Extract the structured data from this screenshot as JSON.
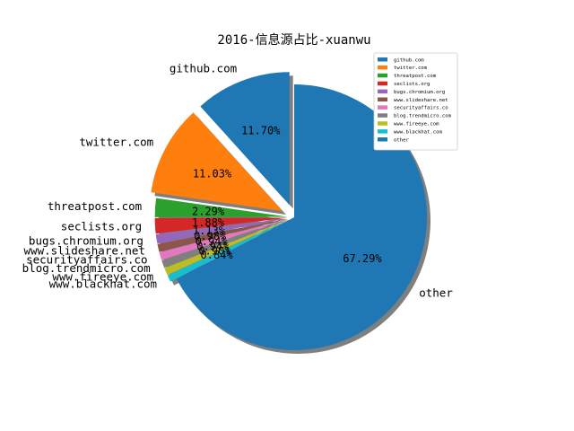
{
  "chart_data": {
    "type": "pie",
    "title": "2016-信息源占比-xuanwu",
    "start_angle_deg": 90,
    "direction": "counterclockwise",
    "shadow": true,
    "legend_placement": "top-right",
    "slices": [
      {
        "label": "github.com",
        "pct": 11.7,
        "pct_label": "11.70%",
        "color": "#1f77b4",
        "explode": 0.1
      },
      {
        "label": "twitter.com",
        "pct": 11.03,
        "pct_label": "11.03%",
        "color": "#ff7f0e",
        "explode": 0.1
      },
      {
        "label": "threatpost.com",
        "pct": 2.29,
        "pct_label": "2.29%",
        "color": "#2ca02c",
        "explode": 0.05
      },
      {
        "label": "seclists.org",
        "pct": 1.88,
        "pct_label": "1.88%",
        "color": "#d62728",
        "explode": 0.05
      },
      {
        "label": "bugs.chromium.org",
        "pct": 1.13,
        "pct_label": "1.13%",
        "color": "#9467bd",
        "explode": 0.05
      },
      {
        "label": "www.slideshare.net",
        "pct": 0.98,
        "pct_label": "0.98%",
        "color": "#8c564b",
        "explode": 0.05
      },
      {
        "label": "securityaffairs.co",
        "pct": 0.94,
        "pct_label": "0.94%",
        "color": "#e377c2",
        "explode": 0.05
      },
      {
        "label": "blog.trendmicro.com",
        "pct": 0.94,
        "pct_label": "0.94%",
        "color": "#7f7f7f",
        "explode": 0.05
      },
      {
        "label": "www.fireeye.com",
        "pct": 0.9,
        "pct_label": "0.90%",
        "color": "#bcbd22",
        "explode": 0.05
      },
      {
        "label": "www.blackhat.com",
        "pct": 0.84,
        "pct_label": "0.84%",
        "color": "#17becf",
        "explode": 0.05
      },
      {
        "label": "other",
        "pct": 67.29,
        "pct_label": "67.29%",
        "color": "#1f77b4",
        "explode": 0.0
      }
    ]
  }
}
